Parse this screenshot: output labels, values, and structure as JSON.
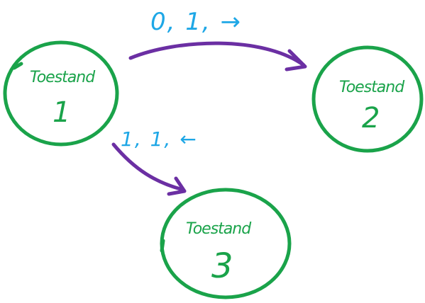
{
  "colors": {
    "state": "#1aa34a",
    "edge": "#6b2fa3",
    "label": "#1ea7e6"
  },
  "states": [
    {
      "id": "s1",
      "label": "Toestand",
      "number": "1"
    },
    {
      "id": "s2",
      "label": "Toestand",
      "number": "2"
    },
    {
      "id": "s3",
      "label": "Toestand",
      "number": "3"
    }
  ],
  "transitions": [
    {
      "from": "s1",
      "to": "s2",
      "label": "0, 1, →"
    },
    {
      "from": "s1",
      "to": "s3",
      "label": "1, 1, ←"
    }
  ]
}
